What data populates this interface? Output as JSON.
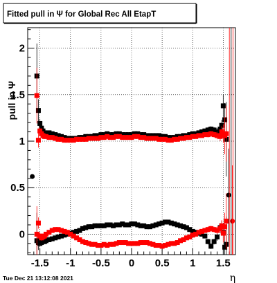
{
  "chart_data": {
    "type": "scatter",
    "title": "Fitted pull in  Ψ  for Global Rec All EtapT",
    "xlabel": "η",
    "ylabel": "pull in  Ψ",
    "xlim": [
      -1.7,
      1.7
    ],
    "ylim": [
      -0.22,
      2.22
    ],
    "grid": true,
    "x_ticks": [
      {
        "value": -1.5,
        "label": "-1.5"
      },
      {
        "value": -1.0,
        "label": "-1"
      },
      {
        "value": -0.5,
        "label": "-0.5"
      },
      {
        "value": 0.0,
        "label": "0"
      },
      {
        "value": 0.5,
        "label": "0.5"
      },
      {
        "value": 1.0,
        "label": "1"
      },
      {
        "value": 1.5,
        "label": "1.5"
      }
    ],
    "y_ticks": [
      {
        "value": 0.0,
        "label": "0"
      },
      {
        "value": 0.5,
        "label": "0.5"
      },
      {
        "value": 1.0,
        "label": "1"
      },
      {
        "value": 1.5,
        "label": "1.5"
      },
      {
        "value": 2.0,
        "label": "2"
      }
    ],
    "series": [
      {
        "color": "#000000",
        "marker": "square",
        "kind": "width",
        "x": [
          -1.55,
          -1.525,
          -1.5,
          -1.475,
          -1.45,
          -1.425,
          -1.4,
          -1.35,
          -1.3,
          -1.25,
          -1.2,
          -1.15,
          -1.1,
          -1.05,
          -1.0,
          -0.95,
          -0.9,
          -0.85,
          -0.8,
          -0.75,
          -0.7,
          -0.65,
          -0.6,
          -0.55,
          -0.5,
          -0.45,
          -0.4,
          -0.35,
          -0.3,
          -0.25,
          -0.2,
          -0.15,
          -0.1,
          -0.05,
          0.0,
          0.05,
          0.1,
          0.15,
          0.2,
          0.25,
          0.3,
          0.35,
          0.4,
          0.45,
          0.5,
          0.55,
          0.6,
          0.65,
          0.7,
          0.75,
          0.8,
          0.85,
          0.9,
          0.95,
          1.0,
          1.05,
          1.1,
          1.15,
          1.2,
          1.25,
          1.3,
          1.35,
          1.4,
          1.45,
          1.475,
          1.5,
          1.525,
          1.55
        ],
        "y": [
          1.7,
          1.33,
          1.19,
          1.14,
          1.11,
          1.09,
          1.08,
          1.09,
          1.08,
          1.07,
          1.06,
          1.05,
          1.04,
          1.03,
          1.03,
          1.03,
          1.03,
          1.04,
          1.04,
          1.05,
          1.05,
          1.05,
          1.06,
          1.06,
          1.07,
          1.07,
          1.08,
          1.07,
          1.07,
          1.08,
          1.08,
          1.07,
          1.07,
          1.07,
          1.07,
          1.08,
          1.08,
          1.07,
          1.07,
          1.06,
          1.06,
          1.06,
          1.06,
          1.06,
          1.05,
          1.05,
          1.04,
          1.04,
          1.04,
          1.05,
          1.05,
          1.06,
          1.06,
          1.07,
          1.08,
          1.08,
          1.09,
          1.1,
          1.11,
          1.12,
          1.13,
          1.12,
          1.1,
          1.13,
          1.17,
          1.38,
          1.23,
          1.02
        ],
        "yerr": [
          0.35,
          0.12,
          0.05,
          0.03,
          0.03,
          0.02,
          0.02,
          0.02,
          0.02,
          0.02,
          0.02,
          0.02,
          0.02,
          0.02,
          0.02,
          0.02,
          0.02,
          0.02,
          0.02,
          0.02,
          0.02,
          0.02,
          0.02,
          0.02,
          0.02,
          0.02,
          0.02,
          0.02,
          0.02,
          0.02,
          0.02,
          0.02,
          0.02,
          0.02,
          0.02,
          0.02,
          0.02,
          0.02,
          0.02,
          0.02,
          0.02,
          0.02,
          0.02,
          0.02,
          0.02,
          0.02,
          0.02,
          0.02,
          0.02,
          0.02,
          0.02,
          0.02,
          0.02,
          0.02,
          0.02,
          0.02,
          0.02,
          0.02,
          0.02,
          0.03,
          0.03,
          0.03,
          0.04,
          0.05,
          0.06,
          0.12,
          0.18,
          0.4
        ]
      },
      {
        "color": "#ff0000",
        "marker": "square",
        "kind": "width",
        "x": [
          -1.55,
          -1.525,
          -1.5,
          -1.475,
          -1.45,
          -1.425,
          -1.4,
          -1.35,
          -1.3,
          -1.25,
          -1.2,
          -1.15,
          -1.1,
          -1.05,
          -1.0,
          -0.95,
          -0.9,
          -0.85,
          -0.8,
          -0.75,
          -0.7,
          -0.65,
          -0.6,
          -0.55,
          -0.5,
          -0.45,
          -0.4,
          -0.35,
          -0.3,
          -0.25,
          -0.2,
          -0.15,
          -0.1,
          -0.05,
          0.0,
          0.05,
          0.1,
          0.15,
          0.2,
          0.25,
          0.3,
          0.35,
          0.4,
          0.45,
          0.5,
          0.55,
          0.6,
          0.65,
          0.7,
          0.75,
          0.8,
          0.85,
          0.9,
          0.95,
          1.0,
          1.05,
          1.1,
          1.15,
          1.2,
          1.25,
          1.3,
          1.35,
          1.4,
          1.45,
          1.475,
          1.5,
          1.525,
          1.55
        ],
        "y": [
          1.49,
          1.01,
          1.11,
          1.08,
          1.06,
          1.05,
          1.05,
          1.04,
          1.04,
          1.03,
          1.02,
          1.02,
          1.01,
          1.01,
          1.01,
          1.01,
          1.02,
          1.02,
          1.02,
          1.02,
          1.03,
          1.03,
          1.03,
          1.03,
          1.04,
          1.04,
          1.05,
          1.04,
          1.04,
          1.05,
          1.05,
          1.04,
          1.04,
          1.04,
          1.04,
          1.05,
          1.05,
          1.04,
          1.04,
          1.03,
          1.03,
          1.03,
          1.03,
          1.02,
          1.02,
          1.02,
          1.01,
          1.01,
          1.02,
          1.02,
          1.03,
          1.03,
          1.04,
          1.04,
          1.05,
          1.05,
          1.06,
          1.06,
          1.07,
          1.07,
          1.08,
          1.07,
          1.06,
          1.05,
          1.1,
          1.08,
          1.06,
          1.08
        ],
        "yerr": [
          0.3,
          0.08,
          0.04,
          0.03,
          0.03,
          0.02,
          0.02,
          0.02,
          0.02,
          0.02,
          0.02,
          0.02,
          0.02,
          0.02,
          0.02,
          0.02,
          0.02,
          0.02,
          0.02,
          0.02,
          0.02,
          0.02,
          0.02,
          0.02,
          0.02,
          0.02,
          0.02,
          0.02,
          0.02,
          0.02,
          0.02,
          0.02,
          0.02,
          0.02,
          0.02,
          0.02,
          0.02,
          0.02,
          0.02,
          0.02,
          0.02,
          0.02,
          0.02,
          0.02,
          0.02,
          0.02,
          0.02,
          0.02,
          0.02,
          0.02,
          0.02,
          0.02,
          0.02,
          0.02,
          0.02,
          0.02,
          0.02,
          0.02,
          0.02,
          0.03,
          0.03,
          0.03,
          0.04,
          0.05,
          0.06,
          0.1,
          0.2,
          0.3
        ]
      },
      {
        "color": "#000000",
        "marker": "square",
        "kind": "mean",
        "x": [
          -1.55,
          -1.525,
          -1.5,
          -1.475,
          -1.45,
          -1.425,
          -1.4,
          -1.35,
          -1.3,
          -1.25,
          -1.2,
          -1.15,
          -1.1,
          -1.05,
          -1.0,
          -0.95,
          -0.9,
          -0.85,
          -0.8,
          -0.75,
          -0.7,
          -0.65,
          -0.6,
          -0.55,
          -0.5,
          -0.45,
          -0.4,
          -0.35,
          -0.3,
          -0.25,
          -0.2,
          -0.15,
          -0.1,
          -0.05,
          0.0,
          0.05,
          0.1,
          0.15,
          0.2,
          0.25,
          0.3,
          0.35,
          0.4,
          0.45,
          0.5,
          0.55,
          0.6,
          0.65,
          0.7,
          0.75,
          0.8,
          0.85,
          0.9,
          0.95,
          1.0,
          1.05,
          1.1,
          1.15,
          1.2,
          1.25,
          1.3,
          1.35,
          1.4,
          1.45,
          1.475,
          1.5,
          1.525,
          1.55
        ],
        "y": [
          -0.07,
          -0.09,
          -0.1,
          -0.09,
          -0.08,
          -0.08,
          -0.07,
          -0.06,
          -0.05,
          -0.04,
          -0.03,
          -0.02,
          -0.01,
          0.0,
          0.01,
          0.02,
          0.03,
          0.04,
          0.06,
          0.07,
          0.08,
          0.08,
          0.09,
          0.09,
          0.09,
          0.09,
          0.1,
          0.1,
          0.09,
          0.1,
          0.1,
          0.11,
          0.1,
          0.1,
          0.11,
          0.11,
          0.1,
          0.09,
          0.09,
          0.08,
          0.08,
          0.09,
          0.1,
          0.11,
          0.12,
          0.13,
          0.13,
          0.12,
          0.11,
          0.1,
          0.09,
          0.08,
          0.07,
          0.05,
          0.03,
          0.02,
          0.01,
          0.0,
          -0.02,
          -0.08,
          -0.13,
          -0.08,
          -0.03,
          0.07,
          0.08,
          0.02,
          -0.14,
          -0.11
        ],
        "yerr": [
          0.3,
          0.08,
          0.04,
          0.03,
          0.03,
          0.02,
          0.02,
          0.02,
          0.02,
          0.02,
          0.02,
          0.02,
          0.02,
          0.02,
          0.02,
          0.02,
          0.02,
          0.02,
          0.02,
          0.02,
          0.02,
          0.02,
          0.02,
          0.02,
          0.02,
          0.02,
          0.02,
          0.02,
          0.02,
          0.02,
          0.02,
          0.02,
          0.02,
          0.02,
          0.02,
          0.02,
          0.02,
          0.02,
          0.02,
          0.02,
          0.02,
          0.02,
          0.02,
          0.02,
          0.02,
          0.02,
          0.02,
          0.02,
          0.02,
          0.02,
          0.02,
          0.02,
          0.02,
          0.02,
          0.02,
          0.02,
          0.02,
          0.02,
          0.02,
          0.03,
          0.03,
          0.03,
          0.04,
          0.05,
          0.06,
          0.1,
          0.15,
          0.3
        ]
      },
      {
        "color": "#ff0000",
        "marker": "square",
        "kind": "mean",
        "x": [
          -1.55,
          -1.525,
          -1.5,
          -1.475,
          -1.45,
          -1.425,
          -1.4,
          -1.35,
          -1.3,
          -1.25,
          -1.2,
          -1.15,
          -1.1,
          -1.05,
          -1.0,
          -0.95,
          -0.9,
          -0.85,
          -0.8,
          -0.75,
          -0.7,
          -0.65,
          -0.6,
          -0.55,
          -0.5,
          -0.45,
          -0.4,
          -0.35,
          -0.3,
          -0.25,
          -0.2,
          -0.15,
          -0.1,
          -0.05,
          0.0,
          0.05,
          0.1,
          0.15,
          0.2,
          0.25,
          0.3,
          0.35,
          0.4,
          0.45,
          0.5,
          0.55,
          0.6,
          0.65,
          0.7,
          0.75,
          0.8,
          0.85,
          0.9,
          0.95,
          1.0,
          1.05,
          1.1,
          1.15,
          1.2,
          1.25,
          1.3,
          1.35,
          1.4,
          1.45,
          1.475,
          1.5,
          1.525,
          1.55
        ],
        "y": [
          0.0,
          0.12,
          -0.02,
          -0.04,
          -0.03,
          -0.02,
          0.0,
          0.02,
          0.04,
          0.05,
          0.05,
          0.04,
          0.03,
          0.02,
          0.0,
          -0.02,
          -0.04,
          -0.06,
          -0.08,
          -0.09,
          -0.1,
          -0.11,
          -0.11,
          -0.12,
          -0.12,
          -0.11,
          -0.12,
          -0.11,
          -0.11,
          -0.1,
          -0.09,
          -0.09,
          -0.09,
          -0.1,
          -0.1,
          -0.1,
          -0.1,
          -0.09,
          -0.09,
          -0.09,
          -0.1,
          -0.11,
          -0.12,
          -0.12,
          -0.13,
          -0.12,
          -0.11,
          -0.1,
          -0.1,
          -0.09,
          -0.07,
          -0.06,
          -0.04,
          -0.03,
          -0.01,
          0.0,
          0.02,
          0.03,
          0.04,
          0.05,
          0.06,
          0.05,
          0.04,
          0.06,
          0.09,
          0.01,
          0.08,
          0.14
        ],
        "yerr": [
          0.3,
          0.06,
          0.04,
          0.03,
          0.03,
          0.02,
          0.02,
          0.02,
          0.02,
          0.02,
          0.02,
          0.02,
          0.02,
          0.02,
          0.02,
          0.02,
          0.02,
          0.02,
          0.02,
          0.02,
          0.02,
          0.02,
          0.02,
          0.02,
          0.02,
          0.02,
          0.02,
          0.02,
          0.02,
          0.02,
          0.02,
          0.02,
          0.02,
          0.02,
          0.02,
          0.02,
          0.02,
          0.02,
          0.02,
          0.02,
          0.02,
          0.02,
          0.02,
          0.02,
          0.02,
          0.02,
          0.02,
          0.02,
          0.02,
          0.02,
          0.02,
          0.02,
          0.02,
          0.02,
          0.02,
          0.02,
          0.02,
          0.02,
          0.02,
          0.03,
          0.03,
          0.03,
          0.04,
          0.05,
          0.06,
          0.1,
          0.15,
          0.3
        ]
      },
      {
        "color": "#000000",
        "marker": "circle",
        "kind": "outlier",
        "x": [
          -1.625,
          1.59
        ],
        "y": [
          0.62,
          0.42
        ],
        "yerr": [
          0,
          0.5
        ]
      },
      {
        "color": "#ff0000",
        "marker": "circle",
        "kind": "outlier",
        "x": [
          1.65
        ],
        "y": [
          0.14
        ],
        "yerr": [
          0.6
        ]
      }
    ],
    "timestamp": "Tue Dec 21 13:12:08 2021"
  }
}
